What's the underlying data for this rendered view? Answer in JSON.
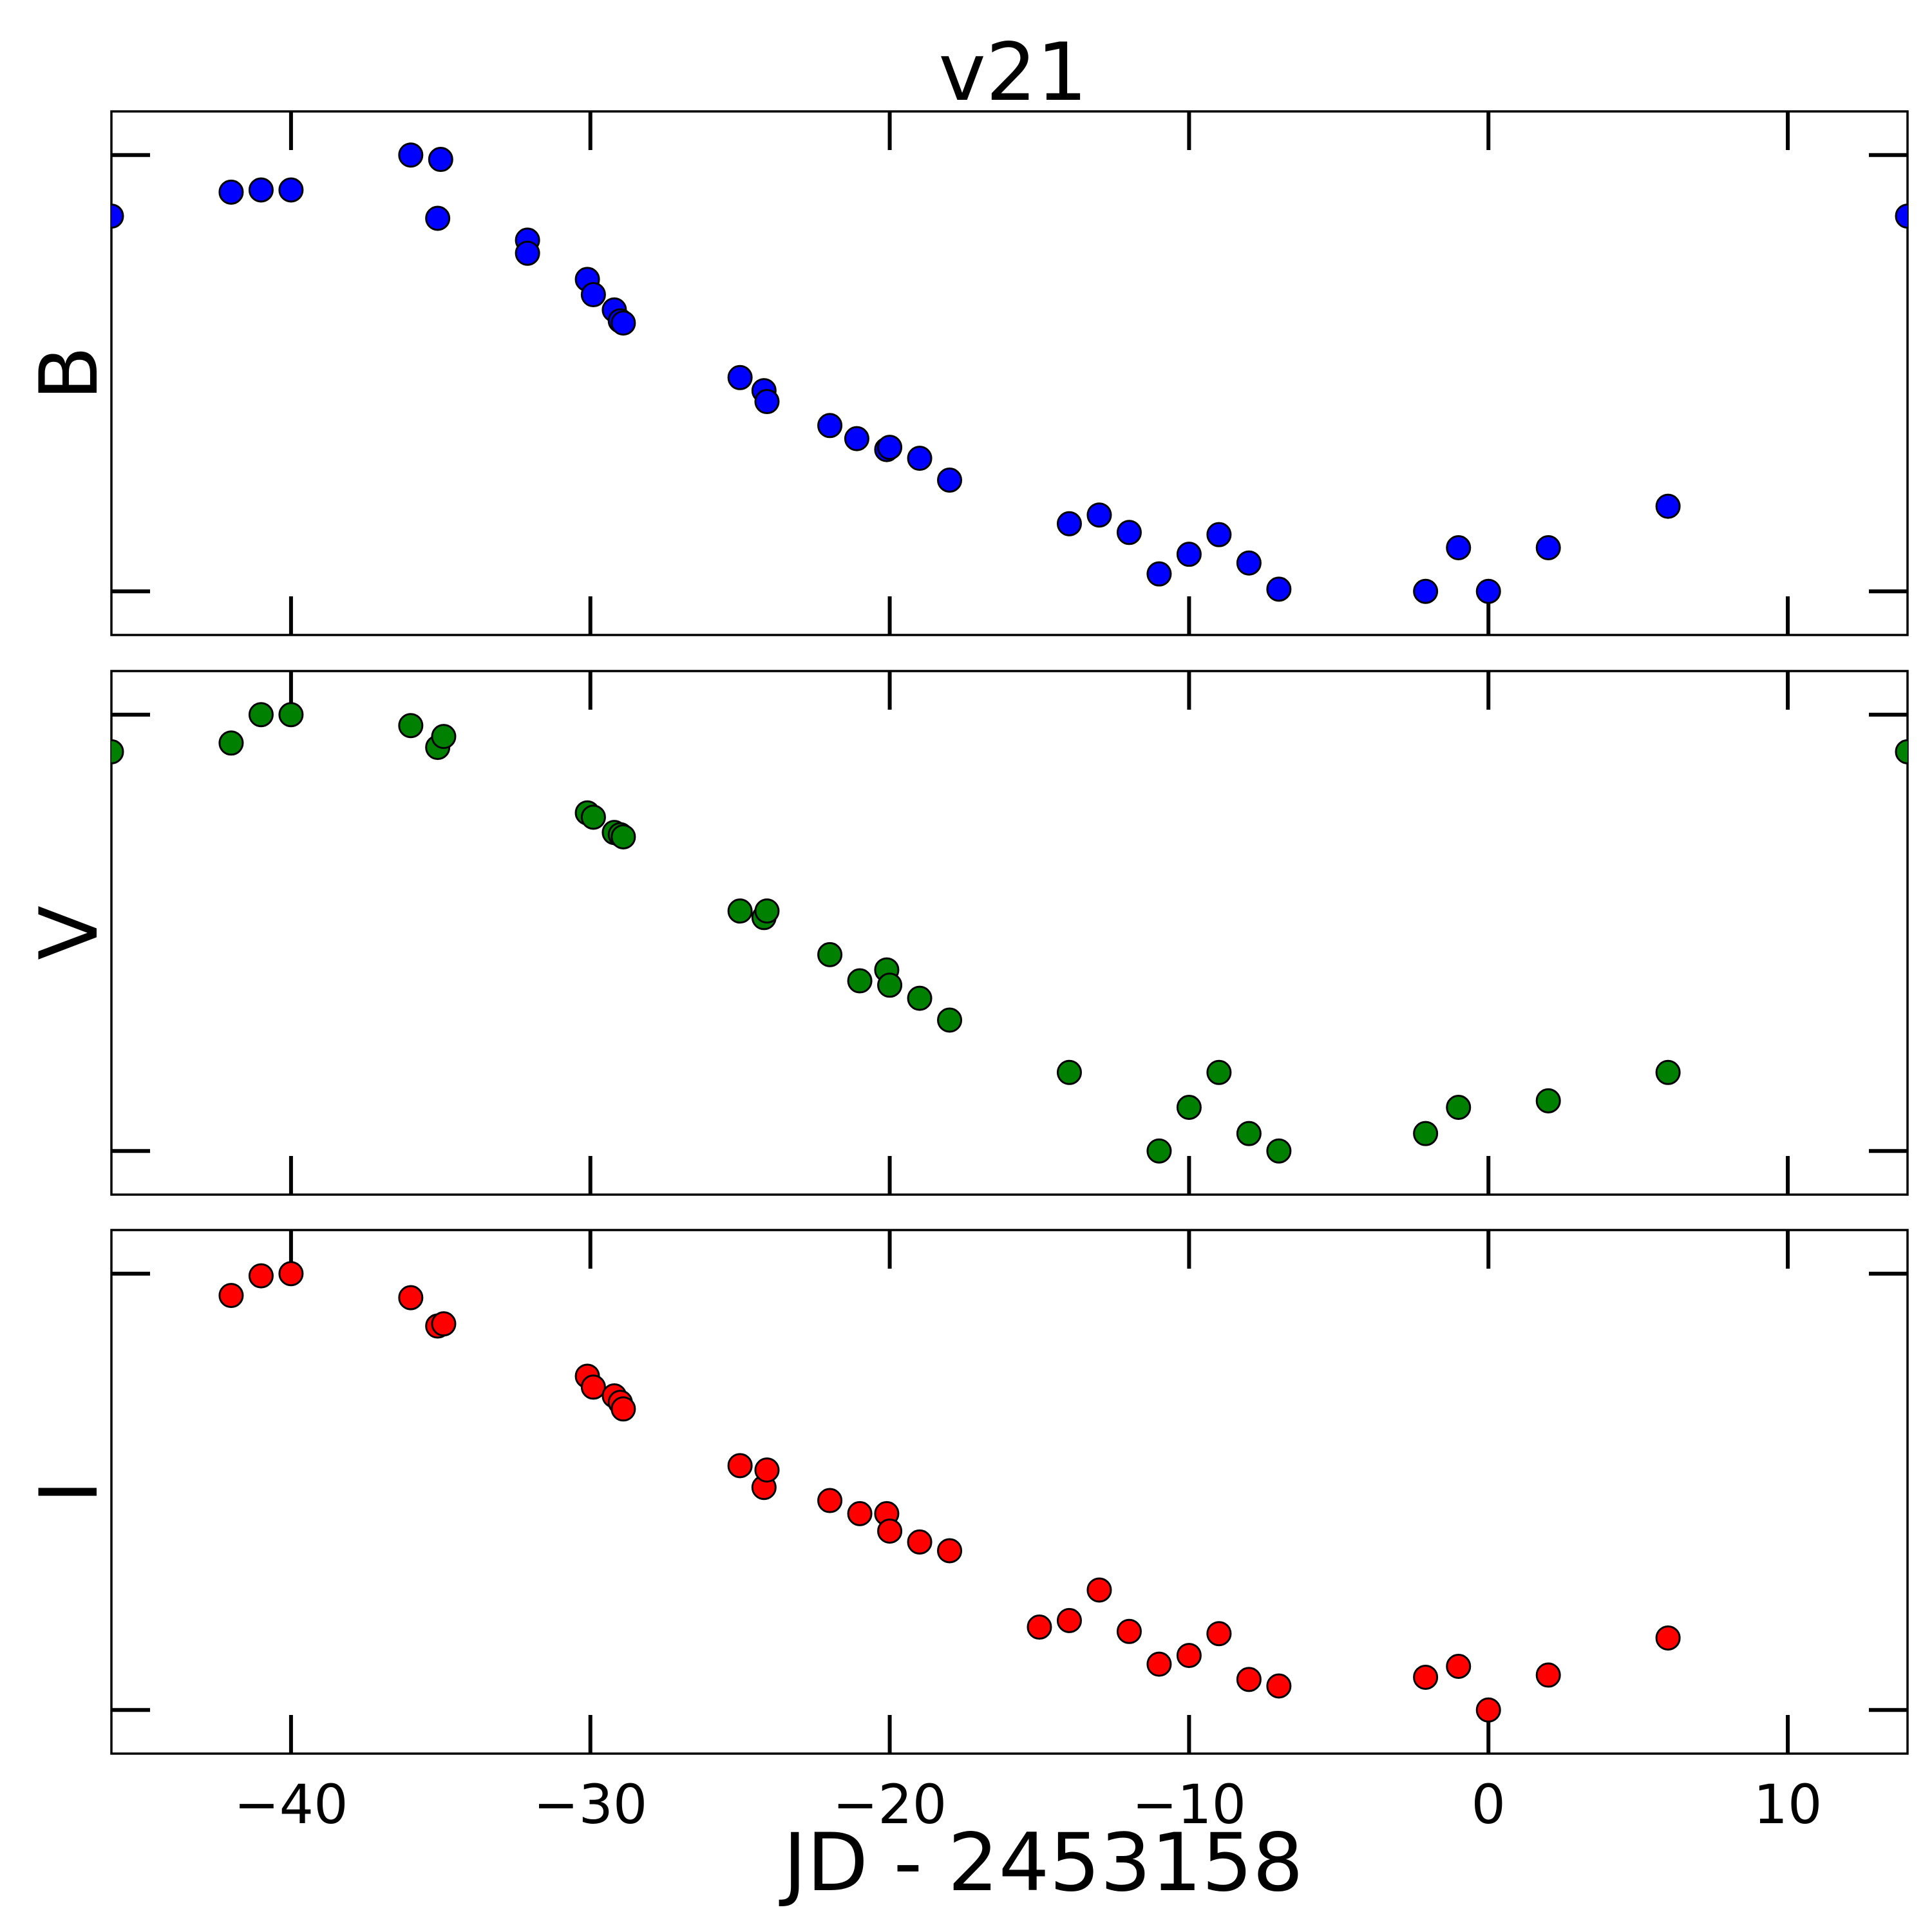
{
  "chart_data": {
    "type": "scatter",
    "title": "v21",
    "xlabel": "JD - 2453158",
    "xlim": [
      -46,
      14
    ],
    "x_ticks": [
      -40,
      -30,
      -20,
      -10,
      0,
      10
    ],
    "x_tick_labels": [
      "−40",
      "−30",
      "−20",
      "−10",
      "0",
      "10"
    ],
    "grid": false,
    "panels": [
      {
        "ylabel": "B",
        "color": "#0000ff",
        "ylim": [
          2.2,
          -0.2
        ],
        "y_ticks": [
          0,
          2
        ],
        "points": [
          [
            -46,
            0.28
          ],
          [
            -42,
            0.17
          ],
          [
            -41,
            0.16
          ],
          [
            -40,
            0.16
          ],
          [
            -36,
            0.0
          ],
          [
            -35,
            0.02
          ],
          [
            -35.1,
            0.29
          ],
          [
            -32.1,
            0.39
          ],
          [
            -32.1,
            0.45
          ],
          [
            -30.1,
            0.57
          ],
          [
            -29.9,
            0.64
          ],
          [
            -29.2,
            0.71
          ],
          [
            -29,
            0.76
          ],
          [
            -28.9,
            0.77
          ],
          [
            -25,
            1.02
          ],
          [
            -24.2,
            1.08
          ],
          [
            -24.1,
            1.13
          ],
          [
            -22,
            1.24
          ],
          [
            -21.1,
            1.3
          ],
          [
            -20.1,
            1.35
          ],
          [
            -20,
            1.34
          ],
          [
            -19,
            1.39
          ],
          [
            -18,
            1.49
          ],
          [
            -14,
            1.69
          ],
          [
            -13,
            1.65
          ],
          [
            -12,
            1.73
          ],
          [
            -11,
            1.92
          ],
          [
            -10,
            1.83
          ],
          [
            -9,
            1.74
          ],
          [
            -8,
            1.87
          ],
          [
            -7,
            1.99
          ],
          [
            -2.1,
            2.0
          ],
          [
            -1,
            1.8
          ],
          [
            0,
            2.0
          ],
          [
            2,
            1.8
          ],
          [
            6,
            1.61
          ],
          [
            14,
            0.28
          ]
        ]
      },
      {
        "ylabel": "V",
        "color": "#008000",
        "ylim": [
          2.2,
          -0.2
        ],
        "y_ticks": [
          0,
          2
        ],
        "points": [
          [
            -46,
            0.17
          ],
          [
            -42,
            0.13
          ],
          [
            -41,
            0.0
          ],
          [
            -40,
            0.0
          ],
          [
            -36,
            0.05
          ],
          [
            -35.1,
            0.15
          ],
          [
            -34.9,
            0.1
          ],
          [
            -30.1,
            0.45
          ],
          [
            -29.9,
            0.47
          ],
          [
            -29.2,
            0.54
          ],
          [
            -29,
            0.55
          ],
          [
            -28.9,
            0.56
          ],
          [
            -25,
            0.9
          ],
          [
            -24.2,
            0.93
          ],
          [
            -24.1,
            0.9
          ],
          [
            -22,
            1.1
          ],
          [
            -21,
            1.22
          ],
          [
            -20.1,
            1.17
          ],
          [
            -20,
            1.24
          ],
          [
            -19,
            1.3
          ],
          [
            -18,
            1.4
          ],
          [
            -14,
            1.64
          ],
          [
            -11,
            2.0
          ],
          [
            -10,
            1.8
          ],
          [
            -9,
            1.64
          ],
          [
            -8,
            1.92
          ],
          [
            -7,
            2.0
          ],
          [
            -2.1,
            1.92
          ],
          [
            -1,
            1.8
          ],
          [
            2,
            1.77
          ],
          [
            6,
            1.64
          ],
          [
            14,
            0.17
          ]
        ]
      },
      {
        "ylabel": "I",
        "color": "#ff0000",
        "ylim": [
          2.2,
          -0.2
        ],
        "y_ticks": [
          0,
          2
        ],
        "points": [
          [
            -42,
            0.1
          ],
          [
            -41,
            0.01
          ],
          [
            -40,
            0.0
          ],
          [
            -36,
            0.11
          ],
          [
            -35.1,
            0.24
          ],
          [
            -34.9,
            0.23
          ],
          [
            -30.1,
            0.47
          ],
          [
            -29.9,
            0.52
          ],
          [
            -29.2,
            0.56
          ],
          [
            -29,
            0.59
          ],
          [
            -28.9,
            0.62
          ],
          [
            -25,
            0.88
          ],
          [
            -24.2,
            0.98
          ],
          [
            -24.1,
            0.9
          ],
          [
            -22,
            1.04
          ],
          [
            -21,
            1.1
          ],
          [
            -20.1,
            1.1
          ],
          [
            -20,
            1.18
          ],
          [
            -19,
            1.23
          ],
          [
            -18,
            1.27
          ],
          [
            -15,
            1.62
          ],
          [
            -14,
            1.59
          ],
          [
            -13,
            1.45
          ],
          [
            -12,
            1.64
          ],
          [
            -11,
            1.79
          ],
          [
            -10,
            1.75
          ],
          [
            -9,
            1.65
          ],
          [
            -8,
            1.86
          ],
          [
            -7,
            1.89
          ],
          [
            -2.1,
            1.85
          ],
          [
            -1,
            1.8
          ],
          [
            0,
            2.0
          ],
          [
            2,
            1.84
          ],
          [
            6,
            1.67
          ]
        ]
      }
    ]
  }
}
